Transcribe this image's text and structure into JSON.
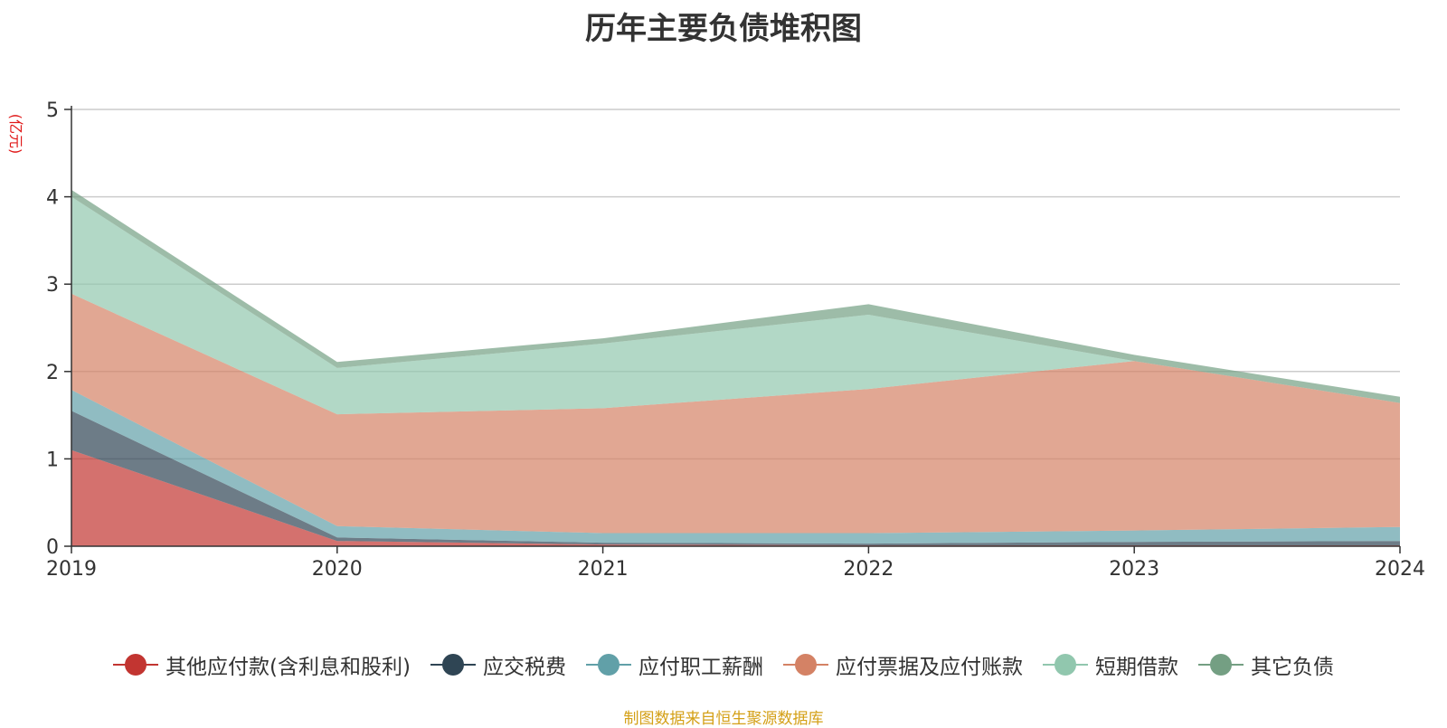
{
  "chart_data": {
    "type": "area",
    "stacked": true,
    "title": "历年主要负债堆积图",
    "unit": "(亿元)",
    "x": [
      "2019",
      "2020",
      "2021",
      "2022",
      "2023",
      "2024"
    ],
    "ylim": [
      0,
      5
    ],
    "yticks": [
      "0",
      "1",
      "2",
      "3",
      "4",
      "5"
    ],
    "grid": true,
    "legend_position": "bottom",
    "series": [
      {
        "name": "其他应付款(含利息和股利)",
        "color": "#c23531",
        "values": [
          1.1,
          0.06,
          0.02,
          0.01,
          0.01,
          0.01
        ]
      },
      {
        "name": "应交税费",
        "color": "#2f4554",
        "values": [
          0.45,
          0.04,
          0.02,
          0.02,
          0.04,
          0.05
        ]
      },
      {
        "name": "应付职工薪酬",
        "color": "#61a0a8",
        "values": [
          0.24,
          0.13,
          0.11,
          0.12,
          0.13,
          0.16
        ]
      },
      {
        "name": "应付票据及应付账款",
        "color": "#d48265",
        "values": [
          1.1,
          1.28,
          1.43,
          1.65,
          1.94,
          1.42
        ]
      },
      {
        "name": "短期借款",
        "color": "#91c7ae",
        "values": [
          1.11,
          0.53,
          0.74,
          0.85,
          0.0,
          0.0
        ]
      },
      {
        "name": "其它负债",
        "color": "#749f83",
        "values": [
          0.08,
          0.07,
          0.06,
          0.12,
          0.07,
          0.07
        ]
      }
    ]
  },
  "source_note": "制图数据来自恒生聚源数据库"
}
